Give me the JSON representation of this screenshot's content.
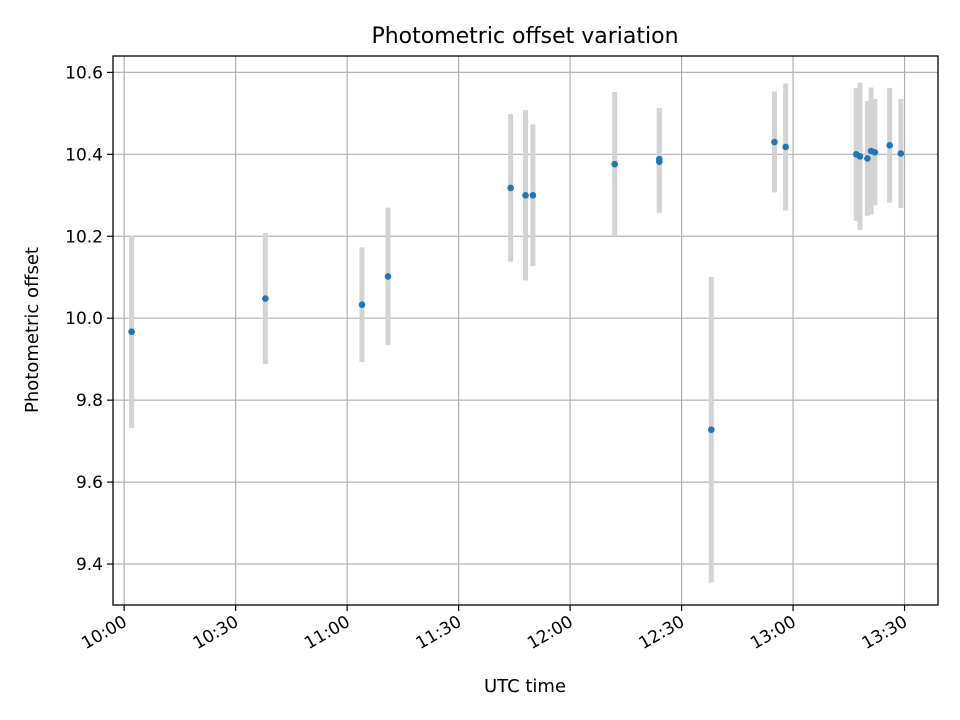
{
  "chart_data": {
    "type": "scatter",
    "title": "Photometric offset variation",
    "xlabel": "UTC time",
    "ylabel": "Photometric offset",
    "x_ticks": [
      "10:00",
      "10:30",
      "11:00",
      "11:30",
      "12:00",
      "12:30",
      "13:00",
      "13:30"
    ],
    "y_ticks": [
      9.4,
      9.6,
      9.8,
      10.0,
      10.2,
      10.4,
      10.6
    ],
    "xlim": [
      "09:57",
      "13:39"
    ],
    "ylim": [
      9.3,
      10.64
    ],
    "grid": true,
    "colors": {
      "point": "#1f77b4",
      "errorbar": "#d3d3d3"
    },
    "points": [
      {
        "time": "10:02",
        "y": 9.967,
        "yerr": 0.235
      },
      {
        "time": "10:38",
        "y": 10.048,
        "yerr": 0.16
      },
      {
        "time": "11:04",
        "y": 10.033,
        "yerr": 0.14
      },
      {
        "time": "11:11",
        "y": 10.102,
        "yerr": 0.168
      },
      {
        "time": "11:44",
        "y": 10.318,
        "yerr": 0.18
      },
      {
        "time": "11:48",
        "y": 10.3,
        "yerr": 0.208
      },
      {
        "time": "11:50",
        "y": 10.3,
        "yerr": 0.173
      },
      {
        "time": "12:12",
        "y": 10.376,
        "yerr": 0.176
      },
      {
        "time": "12:24",
        "y": 10.388,
        "yerr": 0.125
      },
      {
        "time": "12:24",
        "y": 10.382,
        "yerr": 0.125
      },
      {
        "time": "12:38",
        "y": 9.728,
        "yerr": 0.373
      },
      {
        "time": "12:55",
        "y": 10.43,
        "yerr": 0.123
      },
      {
        "time": "12:58",
        "y": 10.418,
        "yerr": 0.155
      },
      {
        "time": "13:17",
        "y": 10.4,
        "yerr": 0.162
      },
      {
        "time": "13:18",
        "y": 10.395,
        "yerr": 0.18
      },
      {
        "time": "13:20",
        "y": 10.39,
        "yerr": 0.14
      },
      {
        "time": "13:21",
        "y": 10.408,
        "yerr": 0.155
      },
      {
        "time": "13:22",
        "y": 10.405,
        "yerr": 0.13
      },
      {
        "time": "13:26",
        "y": 10.422,
        "yerr": 0.14
      },
      {
        "time": "13:29",
        "y": 10.402,
        "yerr": 0.133
      }
    ]
  }
}
